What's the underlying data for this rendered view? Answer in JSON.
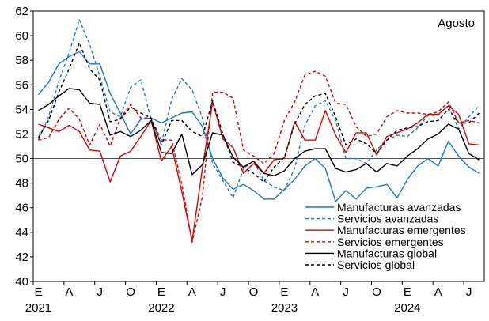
{
  "chart_data": {
    "type": "line",
    "annotation": "Agosto",
    "ylim": [
      40,
      62
    ],
    "yticks": [
      40,
      42,
      44,
      46,
      48,
      50,
      52,
      54,
      56,
      58,
      60,
      62
    ],
    "reference_line": 50,
    "x_month_ticks": [
      "E",
      "A",
      "J",
      "O",
      "E",
      "A",
      "J",
      "O",
      "E",
      "A",
      "J",
      "O",
      "E",
      "A",
      "J"
    ],
    "x_year_ticks": [
      "2021",
      "2022",
      "2023",
      "2024"
    ],
    "x_start": "2021-01",
    "x_end": "2024-08",
    "colors": {
      "blue": "#1f77c4",
      "red": "#e00000",
      "black": "#000000",
      "grid": "#000000"
    },
    "legend_position": "bottom-right",
    "series": [
      {
        "name": "Manufacturas avanzadas",
        "color": "#1f77c4",
        "dash": "solid",
        "values": [
          55.2,
          56.2,
          57.7,
          58.3,
          58.7,
          57.7,
          57.7,
          55.3,
          53.7,
          52.0,
          53.2,
          53.3,
          52.9,
          53.3,
          53.7,
          53.8,
          52.6,
          50.0,
          48.4,
          47.5,
          47.9,
          47.4,
          46.7,
          46.7,
          47.5,
          48.3,
          49.4,
          50.0,
          49.2,
          46.5,
          47.4,
          46.7,
          47.6,
          47.7,
          47.9,
          46.8,
          48.3,
          49.4,
          50.0,
          49.4,
          51.4,
          50.2,
          49.3,
          48.8
        ]
      },
      {
        "name": "Servicios avanzadas",
        "color": "#1f77c4",
        "dash": "dashed",
        "values": [
          51.5,
          53.4,
          56.3,
          58.6,
          61.3,
          59.3,
          56.7,
          53.8,
          53.4,
          55.8,
          56.4,
          53.2,
          51.2,
          54.8,
          56.5,
          55.6,
          53.3,
          49.6,
          48.2,
          46.8,
          49.2,
          49.8,
          48.2,
          47.7,
          47.4,
          49.2,
          52.7,
          54.3,
          54.7,
          53.1,
          50.0,
          50.0,
          49.6,
          50.7,
          51.5,
          51.9,
          51.8,
          52.5,
          53.5,
          53.5,
          54.3,
          52.4,
          53.4,
          54.3
        ]
      },
      {
        "name": "Manufacturas emergentes",
        "color": "#e00000",
        "dash": "solid",
        "values": [
          52.8,
          52.5,
          52.2,
          52.7,
          52.2,
          50.7,
          50.6,
          48.1,
          50.2,
          50.6,
          51.8,
          53.1,
          49.8,
          51.0,
          47.3,
          43.3,
          49.2,
          54.6,
          51.6,
          50.9,
          48.8,
          49.6,
          48.8,
          49.9,
          50.0,
          53.0,
          51.5,
          51.5,
          53.9,
          51.9,
          50.5,
          52.1,
          52.1,
          50.3,
          51.8,
          52.1,
          52.4,
          52.9,
          53.6,
          53.6,
          54.3,
          53.6,
          51.2,
          51.1
        ]
      },
      {
        "name": "Servicios emergentes",
        "color": "#e00000",
        "dash": "dashed",
        "values": [
          51.5,
          51.7,
          53.2,
          54.1,
          53.2,
          51.1,
          52.8,
          51.0,
          53.3,
          54.4,
          53.3,
          53.3,
          51.5,
          51.5,
          47.9,
          43.2,
          46.9,
          55.4,
          55.4,
          54.9,
          50.7,
          50.2,
          49.6,
          50.4,
          53.1,
          54.6,
          56.8,
          57.1,
          56.7,
          54.5,
          54.4,
          52.6,
          51.8,
          52.0,
          53.4,
          53.9,
          53.7,
          53.7,
          53.6,
          53.8,
          54.6,
          52.9,
          53.1,
          52.9
        ]
      },
      {
        "name": "Manufacturas global",
        "color": "#000000",
        "dash": "solid",
        "values": [
          53.9,
          54.4,
          55.1,
          55.7,
          55.6,
          54.5,
          54.4,
          51.9,
          52.2,
          51.8,
          52.3,
          53.1,
          50.5,
          50.4,
          52.0,
          48.7,
          49.5,
          52.1,
          51.9,
          50.1,
          49.3,
          49.8,
          48.8,
          48.6,
          49.0,
          50.0,
          50.6,
          50.8,
          50.8,
          49.2,
          48.9,
          49.1,
          49.6,
          48.9,
          49.6,
          49.4,
          50.2,
          50.8,
          51.6,
          52.0,
          52.8,
          52.4,
          50.4,
          49.9
        ]
      },
      {
        "name": "Servicios global",
        "color": "#000000",
        "dash": "dashed",
        "values": [
          51.7,
          53.1,
          55.4,
          57.3,
          59.4,
          57.3,
          56.4,
          53.0,
          53.2,
          54.2,
          53.7,
          53.3,
          51.1,
          53.1,
          53.1,
          52.2,
          51.8,
          54.7,
          52.0,
          49.7,
          49.3,
          48.8,
          48.1,
          49.3,
          50.1,
          52.8,
          54.4,
          55.1,
          55.3,
          53.4,
          51.1,
          51.6,
          51.2,
          50.4,
          51.5,
          52.3,
          52.5,
          52.6,
          53.0,
          53.1,
          54.0,
          52.9,
          52.9,
          53.7
        ]
      }
    ]
  }
}
